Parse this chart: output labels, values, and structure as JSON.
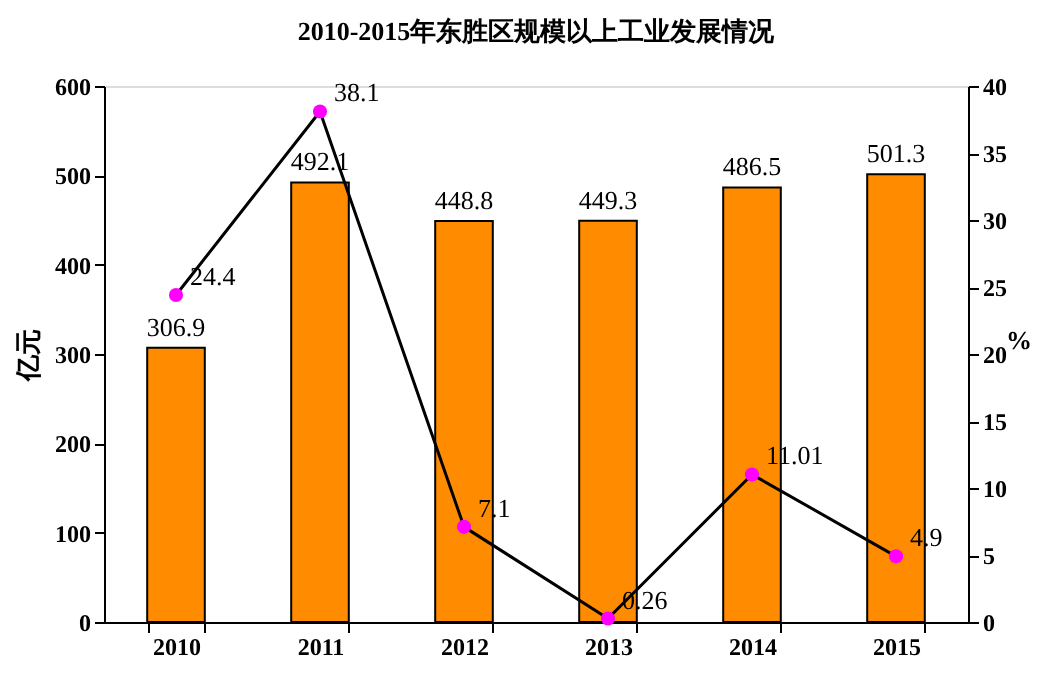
{
  "chart_data": {
    "type": "bar",
    "title": "2010-2015年东胜区规模以上工业发展情况",
    "ylabel": "亿元",
    "y2label": "%",
    "categories": [
      "2010",
      "2011",
      "2012",
      "2013",
      "2014",
      "2015"
    ],
    "series": [
      {
        "color": "#ff8c00",
        "values": [
          306.9,
          492.1,
          448.8,
          449.3,
          486.5,
          501.3
        ]
      },
      {
        "type": "line",
        "axis": "y2",
        "color": "#000000",
        "colors": [
          "#ff00ff",
          "#ff00ff",
          "#ff00ff",
          "#ff00ff",
          "#ff00ff",
          "#ff00ff"
        ],
        "marker": "circle",
        "values": [
          24.4,
          38.1,
          7.1,
          0.26,
          11.01,
          4.9
        ]
      }
    ],
    "ylim": [
      0,
      600
    ],
    "yticks": [
      0,
      100,
      200,
      300,
      400,
      500,
      600
    ],
    "y2lim": [
      0,
      40
    ],
    "y2ticks": [
      0,
      5,
      10,
      15,
      20,
      25,
      30,
      35,
      40
    ],
    "data_labels": true,
    "grid": false
  }
}
